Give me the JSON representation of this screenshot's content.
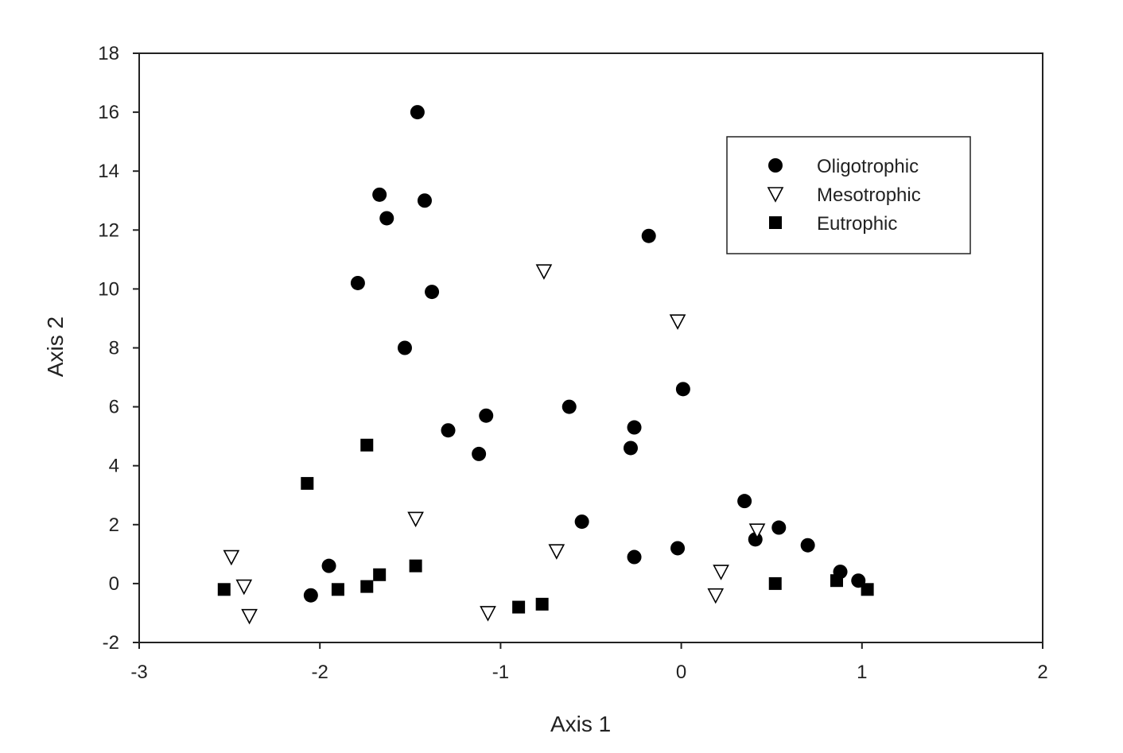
{
  "chart_data": {
    "type": "scatter",
    "xlabel": "Axis 1",
    "ylabel": "Axis 2",
    "xlim": [
      -3,
      2
    ],
    "ylim": [
      -2,
      18
    ],
    "x_ticks": [
      -3,
      -2,
      -1,
      0,
      1,
      2
    ],
    "y_ticks": [
      -2,
      0,
      2,
      4,
      6,
      8,
      10,
      12,
      14,
      16,
      18
    ],
    "x_tick_labels": [
      "-3",
      "-2",
      "-1",
      "0",
      "1",
      "2"
    ],
    "y_tick_labels": [
      "-2",
      "0",
      "2",
      "4",
      "6",
      "8",
      "10",
      "12",
      "14",
      "16",
      "18"
    ],
    "grid": false,
    "legend_position": "top-right",
    "series": [
      {
        "name": "Oligotrophic",
        "marker": "circle",
        "color": "#000000",
        "points": [
          {
            "x": -1.46,
            "y": 16.0
          },
          {
            "x": -1.67,
            "y": 13.2
          },
          {
            "x": -1.42,
            "y": 13.0
          },
          {
            "x": -1.63,
            "y": 12.4
          },
          {
            "x": -0.18,
            "y": 11.8
          },
          {
            "x": -1.79,
            "y": 10.2
          },
          {
            "x": -1.38,
            "y": 9.9
          },
          {
            "x": -1.53,
            "y": 8.0
          },
          {
            "x": 0.01,
            "y": 6.6
          },
          {
            "x": -0.62,
            "y": 6.0
          },
          {
            "x": -1.08,
            "y": 5.7
          },
          {
            "x": -0.26,
            "y": 5.3
          },
          {
            "x": -1.29,
            "y": 5.2
          },
          {
            "x": -0.28,
            "y": 4.6
          },
          {
            "x": -1.12,
            "y": 4.4
          },
          {
            "x": 0.35,
            "y": 2.8
          },
          {
            "x": -0.55,
            "y": 2.1
          },
          {
            "x": 0.54,
            "y": 1.9
          },
          {
            "x": 0.41,
            "y": 1.5
          },
          {
            "x": 0.7,
            "y": 1.3
          },
          {
            "x": -0.02,
            "y": 1.2
          },
          {
            "x": -0.26,
            "y": 0.9
          },
          {
            "x": -1.95,
            "y": 0.6
          },
          {
            "x": 0.88,
            "y": 0.4
          },
          {
            "x": 0.98,
            "y": 0.1
          },
          {
            "x": -2.05,
            "y": -0.4
          }
        ]
      },
      {
        "name": "Mesotrophic",
        "marker": "triangle-down",
        "color": "#000000",
        "points": [
          {
            "x": -0.76,
            "y": 10.6
          },
          {
            "x": -0.02,
            "y": 8.9
          },
          {
            "x": -1.47,
            "y": 2.2
          },
          {
            "x": 0.42,
            "y": 1.8
          },
          {
            "x": -0.69,
            "y": 1.1
          },
          {
            "x": -2.49,
            "y": 0.9
          },
          {
            "x": 0.22,
            "y": 0.4
          },
          {
            "x": -2.42,
            "y": -0.1
          },
          {
            "x": 0.19,
            "y": -0.4
          },
          {
            "x": -1.07,
            "y": -1.0
          },
          {
            "x": -2.39,
            "y": -1.1
          }
        ]
      },
      {
        "name": "Eutrophic",
        "marker": "square",
        "color": "#000000",
        "points": [
          {
            "x": -1.74,
            "y": 4.7
          },
          {
            "x": -2.07,
            "y": 3.4
          },
          {
            "x": -1.47,
            "y": 0.6
          },
          {
            "x": -1.67,
            "y": 0.3
          },
          {
            "x": -1.74,
            "y": -0.1
          },
          {
            "x": -1.9,
            "y": -0.2
          },
          {
            "x": -2.53,
            "y": -0.2
          },
          {
            "x": 0.52,
            "y": 0.0
          },
          {
            "x": 0.86,
            "y": 0.1
          },
          {
            "x": 1.03,
            "y": -0.2
          },
          {
            "x": -0.9,
            "y": -0.8
          },
          {
            "x": -0.77,
            "y": -0.7
          }
        ]
      }
    ]
  }
}
